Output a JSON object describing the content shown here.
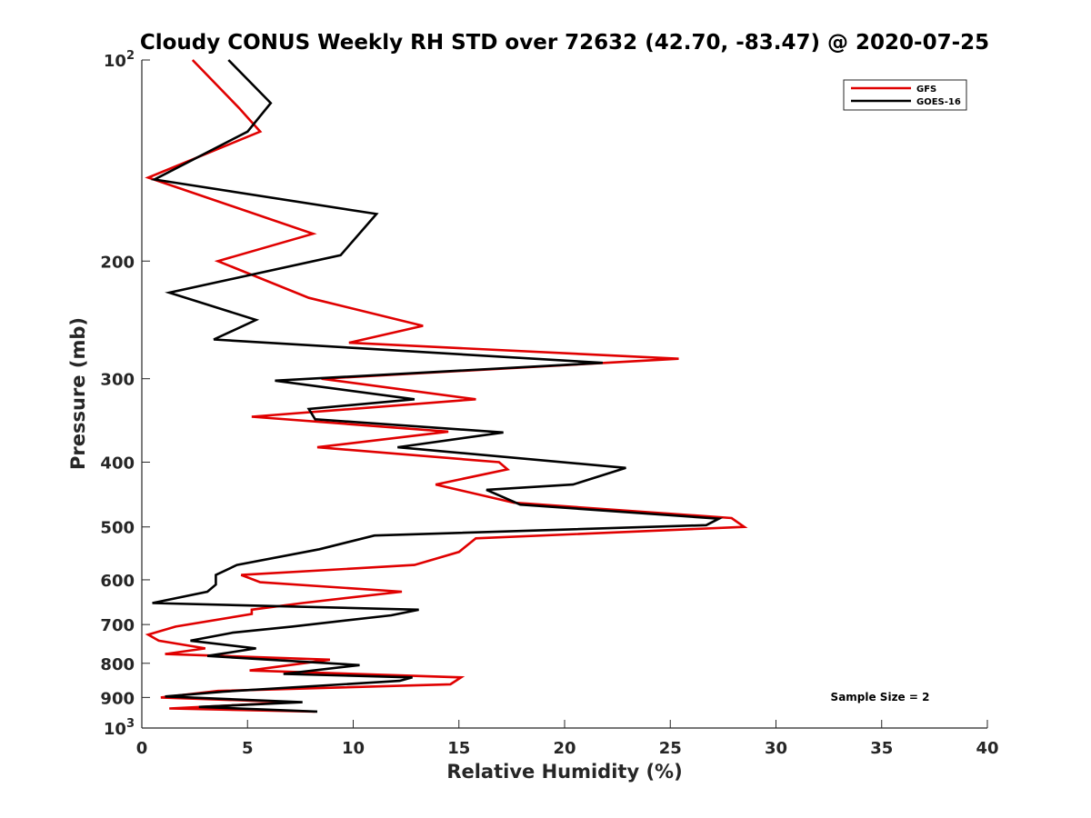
{
  "chart_data": {
    "type": "line",
    "title": "Cloudy CONUS Weekly RH STD over 72632 (42.70, -83.47) @ 2020-07-25",
    "xlabel": "Relative Humidity (%)",
    "ylabel": "Pressure (mb)",
    "xlim": [
      0,
      40
    ],
    "ylim": [
      100,
      1000
    ],
    "y_scale": "log",
    "y_reversed": true,
    "grid": false,
    "legend_placement": "top-right",
    "x_ticks": [
      "0",
      "5",
      "10",
      "15",
      "20",
      "25",
      "30",
      "35",
      "40"
    ],
    "y_ticks": [
      {
        "value": 100,
        "base": "10",
        "exp": "2"
      },
      {
        "value": 200,
        "text": "200"
      },
      {
        "value": 300,
        "text": "300"
      },
      {
        "value": 400,
        "text": "400"
      },
      {
        "value": 500,
        "text": "500"
      },
      {
        "value": 600,
        "text": "600"
      },
      {
        "value": 700,
        "text": "700"
      },
      {
        "value": 800,
        "text": "800"
      },
      {
        "value": 900,
        "text": "900"
      },
      {
        "value": 1000,
        "base": "10",
        "exp": "3"
      }
    ],
    "annotation": "Sample Size = 2",
    "series": [
      {
        "name": "GFS",
        "color": "#e00000",
        "points": [
          [
            2.4,
            100
          ],
          [
            4.6,
            118
          ],
          [
            5.6,
            128
          ],
          [
            0.3,
            150
          ],
          [
            8.1,
            182
          ],
          [
            3.6,
            200
          ],
          [
            7.9,
            227
          ],
          [
            13.3,
            250
          ],
          [
            9.8,
            265
          ],
          [
            25.4,
            280
          ],
          [
            8.5,
            300
          ],
          [
            15.8,
            322
          ],
          [
            5.2,
            342
          ],
          [
            14.5,
            360
          ],
          [
            8.3,
            380
          ],
          [
            16.9,
            400
          ],
          [
            17.3,
            410
          ],
          [
            13.9,
            432
          ],
          [
            17.6,
            460
          ],
          [
            27.9,
            485
          ],
          [
            28.5,
            500
          ],
          [
            15.8,
            520
          ],
          [
            15.0,
            545
          ],
          [
            12.9,
            570
          ],
          [
            4.7,
            590
          ],
          [
            5.6,
            605
          ],
          [
            12.3,
            625
          ],
          [
            7.6,
            650
          ],
          [
            5.2,
            665
          ],
          [
            5.2,
            675
          ],
          [
            1.6,
            705
          ],
          [
            0.3,
            725
          ],
          [
            0.8,
            740
          ],
          [
            3.0,
            760
          ],
          [
            1.1,
            775
          ],
          [
            8.9,
            790
          ],
          [
            5.1,
            820
          ],
          [
            15.1,
            840
          ],
          [
            14.6,
            860
          ],
          [
            3.6,
            880
          ],
          [
            0.9,
            900
          ],
          [
            7.2,
            915
          ],
          [
            1.3,
            935
          ],
          [
            8.2,
            945
          ]
        ]
      },
      {
        "name": "GOES-16",
        "color": "#000000",
        "points": [
          [
            4.1,
            100
          ],
          [
            6.1,
            116
          ],
          [
            5.0,
            128
          ],
          [
            0.6,
            151
          ],
          [
            11.1,
            170
          ],
          [
            9.4,
            196
          ],
          [
            1.3,
            223
          ],
          [
            5.4,
            245
          ],
          [
            3.4,
            262
          ],
          [
            21.8,
            284
          ],
          [
            6.3,
            302
          ],
          [
            12.9,
            322
          ],
          [
            7.9,
            333
          ],
          [
            8.2,
            345
          ],
          [
            17.1,
            361
          ],
          [
            12.1,
            380
          ],
          [
            22.9,
            408
          ],
          [
            20.4,
            432
          ],
          [
            16.3,
            440
          ],
          [
            17.9,
            463
          ],
          [
            27.3,
            486
          ],
          [
            26.7,
            497
          ],
          [
            11.0,
            515
          ],
          [
            8.4,
            540
          ],
          [
            4.5,
            570
          ],
          [
            3.5,
            590
          ],
          [
            3.5,
            610
          ],
          [
            3.1,
            625
          ],
          [
            0.5,
            650
          ],
          [
            13.1,
            665
          ],
          [
            11.8,
            678
          ],
          [
            7.1,
            705
          ],
          [
            4.3,
            720
          ],
          [
            2.3,
            740
          ],
          [
            5.4,
            760
          ],
          [
            3.1,
            780
          ],
          [
            10.3,
            805
          ],
          [
            6.7,
            830
          ],
          [
            12.8,
            840
          ],
          [
            12.2,
            850
          ],
          [
            3.9,
            882
          ],
          [
            1.1,
            897
          ],
          [
            7.6,
            915
          ],
          [
            2.7,
            930
          ],
          [
            8.3,
            945
          ]
        ]
      }
    ]
  }
}
